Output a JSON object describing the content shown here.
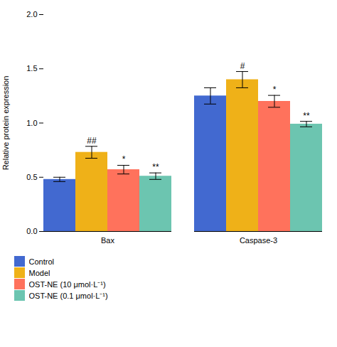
{
  "chart_data": {
    "type": "bar",
    "categories": [
      "Bax",
      "Caspase-3"
    ],
    "series": [
      {
        "name": "Control",
        "values": [
          0.48,
          1.25
        ],
        "errors": [
          0.02,
          0.075
        ]
      },
      {
        "name": "Model",
        "values": [
          0.73,
          1.4
        ],
        "errors": [
          0.055,
          0.075
        ]
      },
      {
        "name": "OST-NE (10 μmol·L⁻¹)",
        "values": [
          0.57,
          1.2
        ],
        "errors": [
          0.04,
          0.055
        ]
      },
      {
        "name": "OST-NE (0.1 μmol·L⁻¹)",
        "values": [
          0.51,
          0.99
        ],
        "errors": [
          0.03,
          0.025
        ]
      }
    ],
    "ylabel": "Relative protein expression",
    "ylim": [
      0.0,
      2.0
    ],
    "yticks": [
      {
        "value": 0.0,
        "label": "0.0"
      },
      {
        "value": 0.5,
        "label": "0.5"
      },
      {
        "value": 1.0,
        "label": "1.0"
      },
      {
        "value": 1.5,
        "label": "1.5"
      },
      {
        "value": 2.0,
        "label": "2.0"
      }
    ],
    "annotations": [
      {
        "category": "Bax",
        "series": "Model",
        "text": "##"
      },
      {
        "category": "Bax",
        "series": "OST-NE (10 μmol·L⁻¹)",
        "text": "*"
      },
      {
        "category": "Bax",
        "series": "OST-NE (0.1 μmol·L⁻¹)",
        "text": "**"
      },
      {
        "category": "Caspase-3",
        "series": "Model",
        "text": "#"
      },
      {
        "category": "Caspase-3",
        "series": "OST-NE (10 μmol·L⁻¹)",
        "text": "*"
      },
      {
        "category": "Caspase-3",
        "series": "OST-NE (0.1 μmol·L⁻¹)",
        "text": "**"
      }
    ],
    "legend": "bottom"
  }
}
